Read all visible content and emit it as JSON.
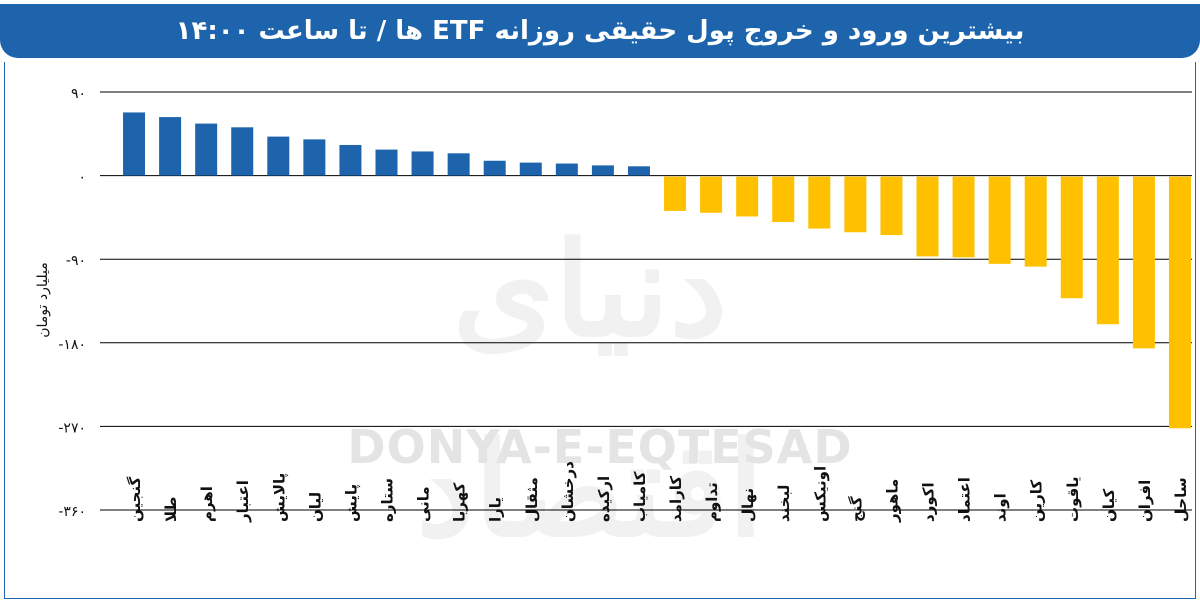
{
  "header": {
    "title": "بیشترین ورود و خروج پول حقیقی روزانه ETF ها / تا ساعت ۱۴:۰۰"
  },
  "watermark": {
    "main": "دنیای اقتصاد",
    "latin": "DONYA-E-EQTESAD"
  },
  "colors": {
    "header": "#1d64ad",
    "positive": "#1d64ad",
    "negative": "#ffc000",
    "grid": "#000000"
  },
  "chart_data": {
    "type": "bar",
    "title": "بیشترین ورود و خروج پول حقیقی روزانه ETF ها / تا ساعت ۱۴:۰۰",
    "ylabel": "میلیارد تومان",
    "xlabel": "",
    "ylim": [
      -360,
      90
    ],
    "yticks": [
      90,
      0,
      -90,
      -180,
      -270,
      -360
    ],
    "ytick_labels": [
      "۹۰",
      "۰",
      "-۹۰",
      "-۱۸۰",
      "-۲۷۰",
      "-۳۶۰"
    ],
    "grid": true,
    "categories": [
      "گنجین",
      "طلا",
      "اهرم",
      "اعتبار",
      "پالایش",
      "لیان",
      "پایش",
      "ستاره",
      "مانی",
      "کهربا",
      "یارا",
      "مثقال",
      "درخشان",
      "ارکیده",
      "کامیاب",
      "کارامد",
      "تداوم",
      "نهال",
      "لبخند",
      "اونیکس",
      "گنج",
      "ماهور",
      "اکورد",
      "اعتماد",
      "اوند",
      "کارین",
      "یاقوت",
      "کیان",
      "افران",
      "ساحل"
    ],
    "values": [
      68,
      63,
      56,
      52,
      42,
      39,
      33,
      28,
      26,
      24,
      16,
      14,
      13,
      11,
      10,
      -38,
      -40,
      -44,
      -50,
      -57,
      -61,
      -64,
      -87,
      -88,
      -95,
      -98,
      -132,
      -160,
      -186,
      -272
    ]
  }
}
